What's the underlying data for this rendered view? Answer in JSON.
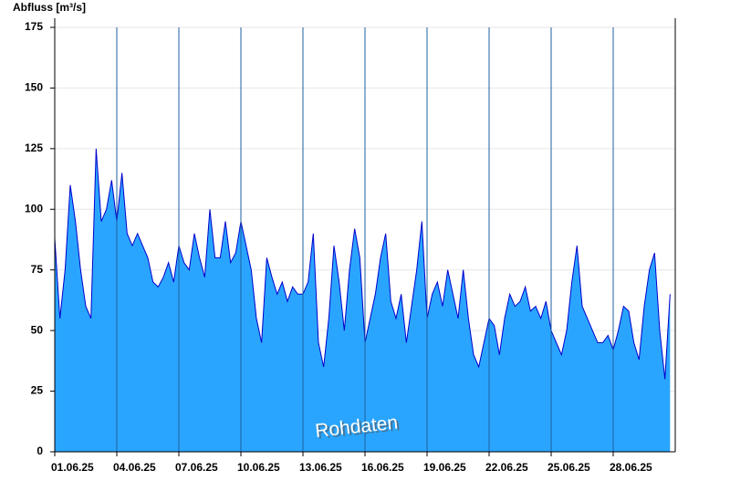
{
  "chart_data": {
    "type": "area",
    "y_label": "Abfluss [m³/s]",
    "annotation": "Rohdaten",
    "fill_color": "#2aa5ff",
    "line_color": "#0000cc",
    "categories": [
      "01.06.25",
      null,
      null,
      null,
      null,
      null,
      null,
      null,
      null,
      null,
      null,
      null,
      "04.06.25",
      null,
      null,
      null,
      null,
      null,
      null,
      null,
      null,
      null,
      null,
      null,
      "07.06.25",
      null,
      null,
      null,
      null,
      null,
      null,
      null,
      null,
      null,
      null,
      null,
      "10.06.25",
      null,
      null,
      null,
      null,
      null,
      null,
      null,
      null,
      null,
      null,
      null,
      "13.06.25",
      null,
      null,
      null,
      null,
      null,
      null,
      null,
      null,
      null,
      null,
      null,
      "16.06.25",
      null,
      null,
      null,
      null,
      null,
      null,
      null,
      null,
      null,
      null,
      null,
      "19.06.25",
      null,
      null,
      null,
      null,
      null,
      null,
      null,
      null,
      null,
      null,
      null,
      "22.06.25",
      null,
      null,
      null,
      null,
      null,
      null,
      null,
      null,
      null,
      null,
      null,
      "25.06.25",
      null,
      null,
      null,
      null,
      null,
      null,
      null,
      null,
      null,
      null,
      null,
      "28.06.25",
      null,
      null,
      null,
      null,
      null,
      null,
      null,
      null,
      null,
      null,
      null
    ],
    "values": [
      88,
      55,
      75,
      110,
      95,
      75,
      60,
      55,
      125,
      95,
      100,
      112,
      95,
      115,
      90,
      85,
      90,
      85,
      80,
      70,
      68,
      72,
      78,
      70,
      85,
      78,
      75,
      90,
      80,
      72,
      100,
      80,
      80,
      95,
      78,
      82,
      95,
      85,
      75,
      55,
      45,
      80,
      72,
      65,
      70,
      62,
      68,
      65,
      65,
      70,
      90,
      45,
      35,
      55,
      85,
      70,
      50,
      75,
      92,
      80,
      45,
      55,
      65,
      80,
      90,
      62,
      55,
      65,
      45,
      60,
      75,
      95,
      55,
      65,
      70,
      60,
      75,
      65,
      55,
      75,
      55,
      40,
      35,
      45,
      55,
      52,
      40,
      55,
      65,
      60,
      62,
      68,
      58,
      60,
      55,
      62,
      50,
      45,
      40,
      50,
      70,
      85,
      60,
      55,
      50,
      45,
      45,
      48,
      42,
      50,
      60,
      58,
      45,
      38,
      60,
      75,
      82,
      50,
      30,
      65
    ],
    "ylim": [
      0,
      175
    ],
    "yticks": [
      0,
      25,
      50,
      75,
      100,
      125,
      150,
      175
    ],
    "grid": true
  }
}
